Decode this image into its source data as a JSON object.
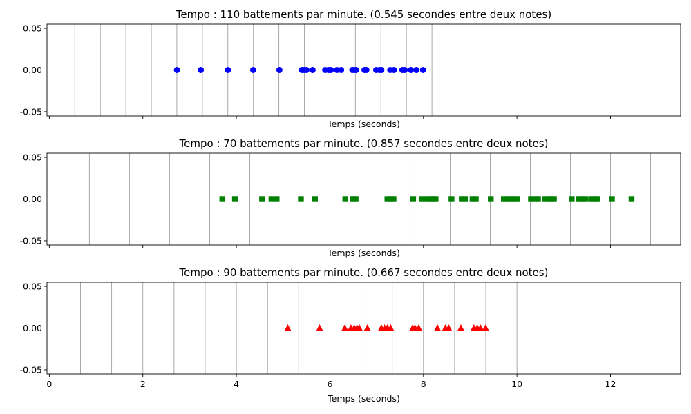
{
  "chart_data": [
    {
      "type": "scatter",
      "title": "Tempo : 110 battements par minute. (0.545 secondes entre deux notes)",
      "xlabel": "Temps (seconds)",
      "ylabel": "",
      "xlim": [
        -0.05,
        13.5
      ],
      "ylim": [
        -0.055,
        0.055
      ],
      "yticks": [
        "0.05",
        "0.00",
        "-0.05"
      ],
      "ytick_values": [
        0.05,
        0.0,
        -0.05
      ],
      "xticks": [],
      "xtick_positions": [
        0,
        2,
        4,
        6,
        8,
        10,
        12
      ],
      "grid_x": [
        0.545,
        1.091,
        1.636,
        2.182,
        2.727,
        3.273,
        3.818,
        4.364,
        4.909,
        5.455,
        6.0,
        6.545,
        7.091,
        7.636,
        8.182
      ],
      "marker": "circle",
      "color": "#0000ff",
      "x": [
        2.73,
        3.24,
        3.82,
        4.36,
        4.92,
        5.4,
        5.45,
        5.5,
        5.63,
        5.9,
        5.97,
        6.02,
        6.15,
        6.24,
        6.48,
        6.52,
        6.56,
        6.74,
        6.78,
        6.99,
        7.06,
        7.1,
        7.29,
        7.37,
        7.55,
        7.6,
        7.73,
        7.85,
        7.99
      ],
      "y": [
        0,
        0,
        0,
        0,
        0,
        0,
        0,
        0,
        0,
        0,
        0,
        0,
        0,
        0,
        0,
        0,
        0,
        0,
        0,
        0,
        0,
        0,
        0,
        0,
        0,
        0,
        0,
        0,
        0
      ]
    },
    {
      "type": "scatter",
      "title": "Tempo : 70 battements par minute. (0.857 secondes entre deux notes)",
      "xlabel": "Temps (seconds)",
      "ylabel": "",
      "xlim": [
        -0.05,
        13.5
      ],
      "ylim": [
        -0.055,
        0.055
      ],
      "yticks": [
        "0.05",
        "0.00",
        "-0.05"
      ],
      "ytick_values": [
        0.05,
        0.0,
        -0.05
      ],
      "xticks": [],
      "xtick_positions": [
        0,
        2,
        4,
        6,
        8,
        10,
        12
      ],
      "grid_x": [
        0.857,
        1.714,
        2.571,
        3.429,
        4.286,
        5.143,
        6.0,
        6.857,
        7.714,
        8.571,
        9.429,
        10.286,
        11.143,
        12.0,
        12.857
      ],
      "marker": "square",
      "color": "#008000",
      "x": [
        3.7,
        3.97,
        4.55,
        4.75,
        4.86,
        5.38,
        5.68,
        6.33,
        6.49,
        6.55,
        7.23,
        7.3,
        7.36,
        7.78,
        7.97,
        8.06,
        8.14,
        8.19,
        8.26,
        8.6,
        8.82,
        8.9,
        9.05,
        9.12,
        9.44,
        9.72,
        9.8,
        9.86,
        9.93,
        10.0,
        10.3,
        10.38,
        10.45,
        10.6,
        10.67,
        10.73,
        10.79,
        11.17,
        11.33,
        11.4,
        11.47,
        11.6,
        11.66,
        11.72,
        12.03,
        12.45
      ],
      "y": [
        0,
        0,
        0,
        0,
        0,
        0,
        0,
        0,
        0,
        0,
        0,
        0,
        0,
        0,
        0,
        0,
        0,
        0,
        0,
        0,
        0,
        0,
        0,
        0,
        0,
        0,
        0,
        0,
        0,
        0,
        0,
        0,
        0,
        0,
        0,
        0,
        0,
        0,
        0,
        0,
        0,
        0,
        0,
        0,
        0,
        0
      ]
    },
    {
      "type": "scatter",
      "title": "Tempo : 90 battements par minute. (0.667 secondes entre deux notes)",
      "xlabel": "Temps (seconds)",
      "ylabel": "",
      "xlim": [
        -0.05,
        13.5
      ],
      "ylim": [
        -0.055,
        0.055
      ],
      "yticks": [
        "0.05",
        "0.00",
        "-0.05"
      ],
      "ytick_values": [
        0.05,
        0.0,
        -0.05
      ],
      "xticks": [
        "0",
        "2",
        "4",
        "6",
        "8",
        "10",
        "12"
      ],
      "xtick_positions": [
        0,
        2,
        4,
        6,
        8,
        10,
        12
      ],
      "grid_x": [
        0.667,
        1.333,
        2.0,
        2.667,
        3.333,
        4.0,
        4.667,
        5.333,
        6.0,
        6.667,
        7.333,
        8.0,
        8.667,
        9.333,
        10.0
      ],
      "marker": "triangle",
      "color": "#ff0000",
      "x": [
        5.1,
        5.78,
        6.32,
        6.45,
        6.52,
        6.58,
        6.63,
        6.8,
        7.1,
        7.17,
        7.23,
        7.3,
        7.77,
        7.82,
        7.9,
        8.3,
        8.47,
        8.54,
        8.8,
        9.08,
        9.15,
        9.22,
        9.33
      ],
      "y": [
        0,
        0,
        0,
        0,
        0,
        0,
        0,
        0,
        0,
        0,
        0,
        0,
        0,
        0,
        0,
        0,
        0,
        0,
        0,
        0,
        0,
        0,
        0
      ]
    }
  ]
}
